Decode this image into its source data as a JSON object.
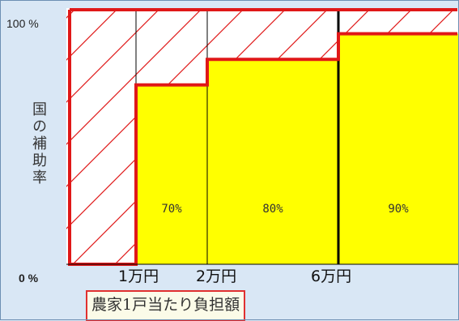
{
  "chart_data": {
    "type": "bar",
    "categories": [
      "1万円",
      "2万円",
      "6万円"
    ],
    "series": [
      {
        "values": [
          70,
          80,
          90
        ]
      }
    ],
    "data_labels": [
      "70%",
      "80%",
      "90%"
    ],
    "y_ticks": [
      "100 %",
      "0 %"
    ],
    "ylim": [
      0,
      100
    ],
    "ylabel": "国の補助率",
    "xlabel": "農家1戸当たり負担額",
    "x_ticks": [
      "1万円",
      "2万円",
      "6万円"
    ],
    "grid": true,
    "legend": "none",
    "colors": {
      "bar_fill": "#ffff00",
      "outline": "#e01818",
      "hatch": "#e01818",
      "plot_background": "#ffffff",
      "page_background": "#d9e7f5"
    }
  }
}
